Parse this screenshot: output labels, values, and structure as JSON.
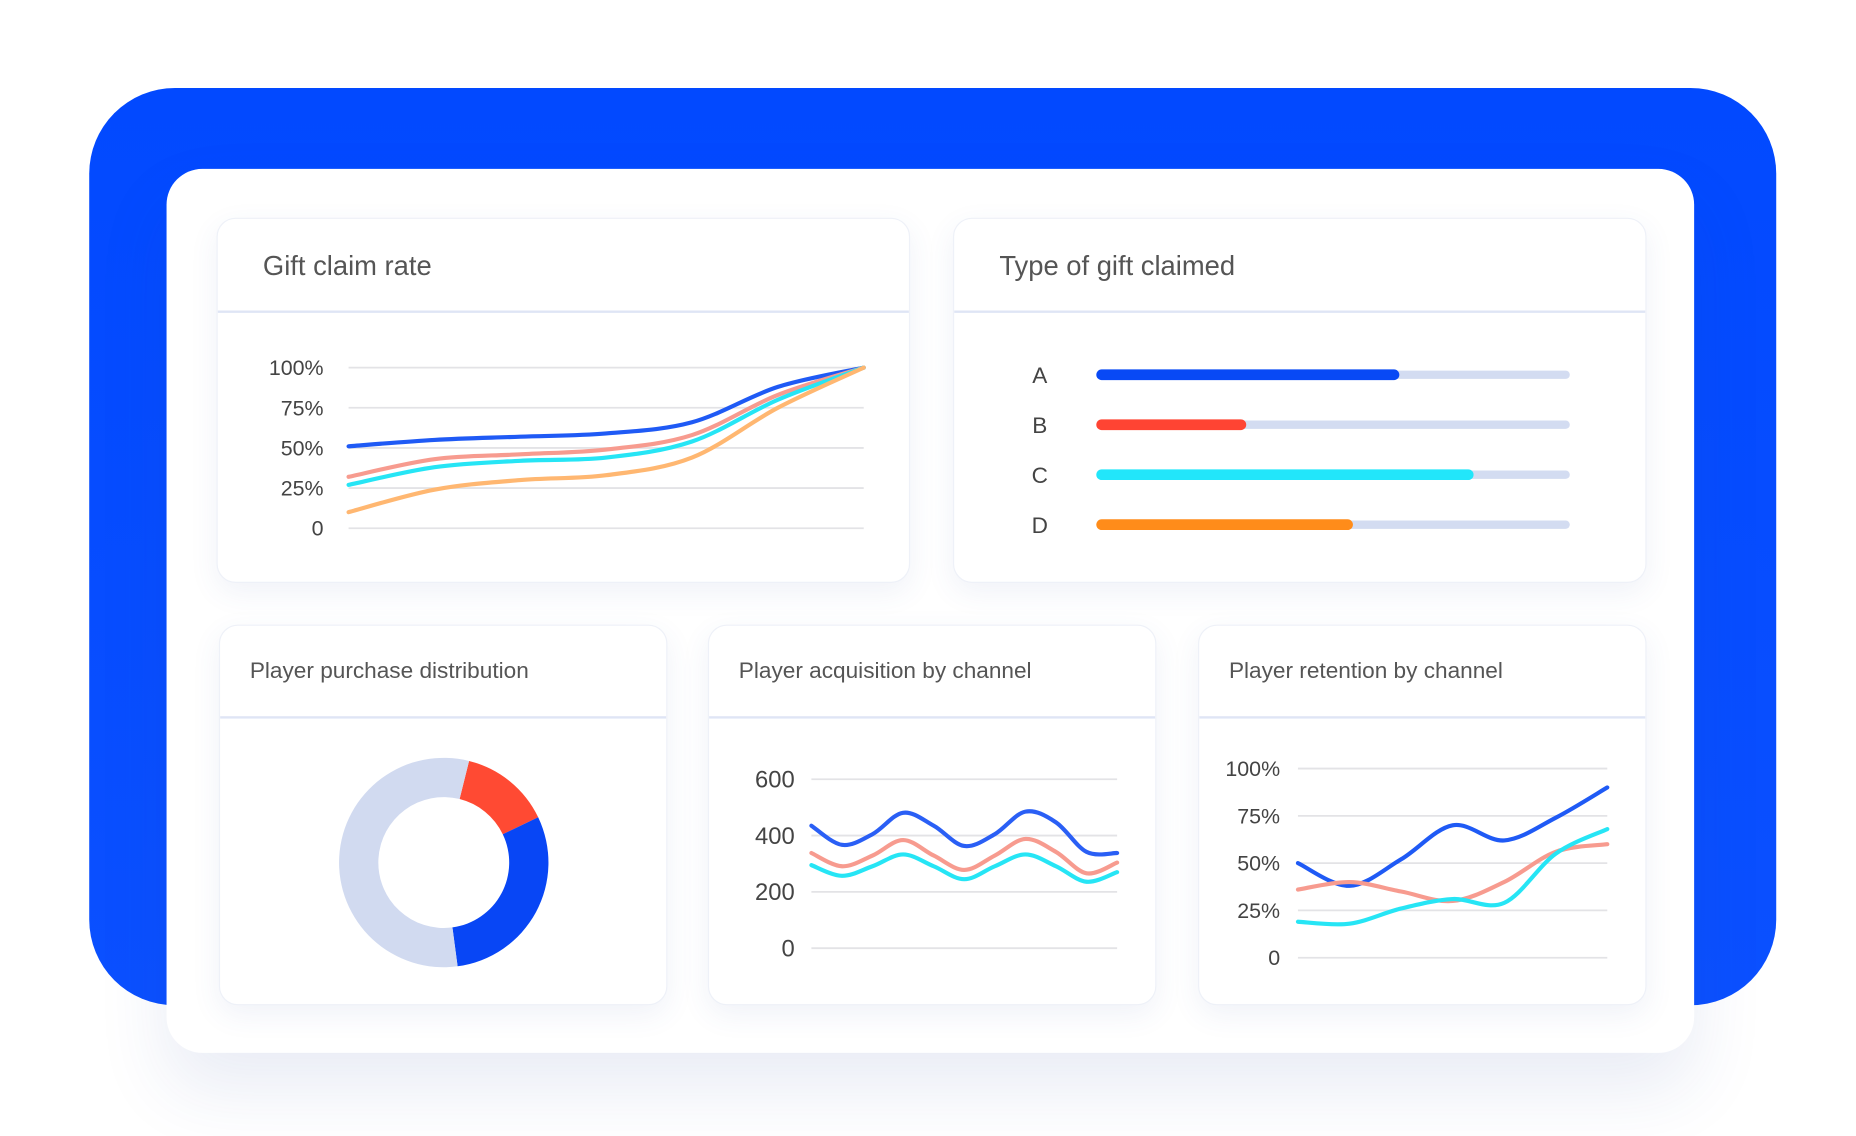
{
  "colors": {
    "brand": "#0a4cff",
    "blue": "#1f5af5",
    "salmon": "#f79b8f",
    "cyan": "#26e5f5",
    "orange": "#ffb771",
    "track": "#d3dcf1"
  },
  "gift_claim_rate": {
    "title": "Gift claim rate"
  },
  "gift_type": {
    "title": "Type of gift claimed"
  },
  "purchase": {
    "title": "Player purchase distribution"
  },
  "acquisition": {
    "title": "Player acquisition by channel"
  },
  "retention": {
    "title": "Player retention by channel"
  },
  "chart_data": [
    {
      "type": "line",
      "title": "Gift claim rate",
      "ylim": [
        0,
        100
      ],
      "yticks": [
        "0",
        "25%",
        "50%",
        "75%",
        "100%"
      ],
      "grid": true,
      "series": [
        {
          "color": "#1f5af5",
          "values": [
            51,
            55,
            57,
            59,
            66,
            88,
            100
          ]
        },
        {
          "color": "#f79b8f",
          "values": [
            32,
            43,
            46,
            49,
            58,
            83,
            100
          ]
        },
        {
          "color": "#26e5f5",
          "values": [
            27,
            38,
            42,
            44,
            54,
            80,
            100
          ]
        },
        {
          "color": "#ffb771",
          "values": [
            10,
            24,
            30,
            33,
            44,
            75,
            100
          ]
        }
      ]
    },
    {
      "type": "bar",
      "orientation": "horizontal",
      "title": "Type of gift claimed",
      "categories": [
        "A",
        "B",
        "C",
        "D"
      ],
      "values": [
        0.63,
        0.3,
        0.79,
        0.53
      ],
      "colors": [
        "#0849f5",
        "#ff4433",
        "#22e6fa",
        "#ff8c1a"
      ]
    },
    {
      "type": "pie",
      "donut": true,
      "title": "Player purchase distribution",
      "values": [
        14,
        30,
        56
      ],
      "colors": [
        "#ff4a33",
        "#0846f5",
        "#d1daf0"
      ]
    },
    {
      "type": "line",
      "title": "Player acquisition by channel",
      "ylim": [
        0,
        600
      ],
      "yticks": [
        "0",
        "200",
        "400",
        "600"
      ],
      "grid": true,
      "series": [
        {
          "color": "#2a5ff5",
          "values": [
            435,
            367,
            405,
            481,
            435,
            363,
            405,
            485,
            447,
            342,
            338
          ]
        },
        {
          "color": "#f79b8f",
          "values": [
            338,
            291,
            329,
            384,
            329,
            278,
            329,
            388,
            342,
            266,
            304
          ]
        },
        {
          "color": "#26e5f5",
          "values": [
            295,
            257,
            291,
            333,
            291,
            245,
            291,
            333,
            291,
            236,
            270
          ]
        }
      ]
    },
    {
      "type": "line",
      "title": "Player retention by channel",
      "ylim": [
        0,
        100
      ],
      "yticks": [
        "0",
        "25%",
        "50%",
        "75%",
        "100%"
      ],
      "grid": true,
      "series": [
        {
          "color": "#1f5af5",
          "values": [
            50,
            38,
            52,
            70,
            62,
            74,
            90
          ]
        },
        {
          "color": "#f79b8f",
          "values": [
            36,
            40,
            35,
            30,
            40,
            56,
            60
          ]
        },
        {
          "color": "#26e5f5",
          "values": [
            19,
            18,
            26,
            31,
            29,
            55,
            68
          ]
        }
      ]
    }
  ]
}
